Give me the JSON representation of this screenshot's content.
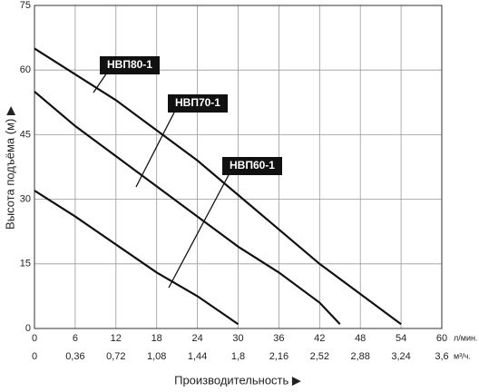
{
  "chart_data": {
    "type": "line",
    "xlabel": "Производительность ▶",
    "ylabel": "Высота подъёма (м) ▶",
    "xunit": "л/мин.",
    "x2unit": "м³/ч.",
    "xlim": [
      0,
      60
    ],
    "xticks": [
      0,
      6,
      12,
      18,
      24,
      30,
      36,
      42,
      48,
      54,
      60
    ],
    "x2lim": [
      0,
      3.6
    ],
    "x2ticks": [
      0,
      {
        "value": 0.36,
        "label": "0,36"
      },
      {
        "value": 0.72,
        "label": "0,72"
      },
      {
        "value": 1.08,
        "label": "1,08"
      },
      {
        "value": 1.44,
        "label": "1,44"
      },
      {
        "value": 1.8,
        "label": "1,8"
      },
      {
        "value": 2.16,
        "label": "2,16"
      },
      {
        "value": 2.52,
        "label": "2,52"
      },
      {
        "value": 2.88,
        "label": "2,88"
      },
      {
        "value": 3.24,
        "label": "3,24"
      },
      {
        "value": 3.6,
        "label": "3,6"
      }
    ],
    "ylim": [
      0,
      75
    ],
    "yticks": [
      0,
      15,
      30,
      45,
      60,
      75
    ],
    "grid": true,
    "series": [
      {
        "name": "НВП80-1",
        "color": "#111111",
        "x": [
          0,
          6,
          12,
          18,
          24,
          30,
          36,
          42,
          48,
          54
        ],
        "values": [
          65,
          59,
          53,
          46,
          39,
          31,
          23,
          15,
          8,
          1
        ]
      },
      {
        "name": "НВП70-1",
        "color": "#111111",
        "x": [
          0,
          6,
          12,
          18,
          24,
          30,
          36,
          42,
          45
        ],
        "values": [
          55,
          47,
          40,
          33,
          26,
          19,
          13,
          6,
          1
        ]
      },
      {
        "name": "НВП60-1",
        "color": "#111111",
        "x": [
          0,
          6,
          12,
          18,
          24,
          30
        ],
        "values": [
          32,
          26,
          19.5,
          13,
          7.5,
          1
        ]
      }
    ]
  }
}
